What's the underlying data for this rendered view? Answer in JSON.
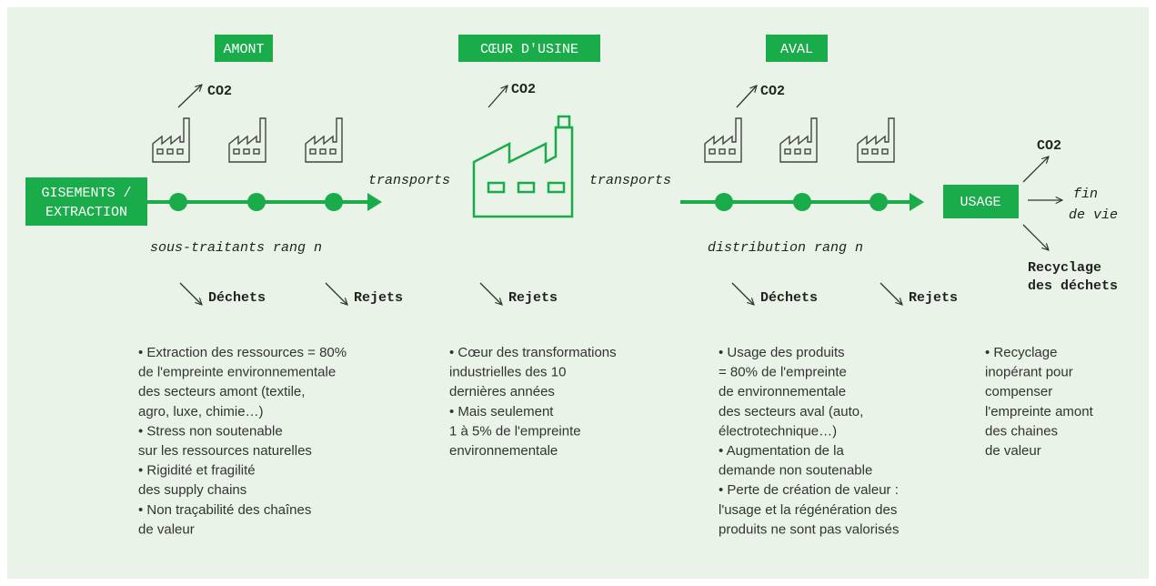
{
  "stages": [
    "AMONT",
    "CŒUR D'USINE",
    "AVAL"
  ],
  "co2": [
    "CO2",
    "CO2",
    "CO2",
    "CO2"
  ],
  "source": [
    "GISEMENTS /",
    "EXTRACTION"
  ],
  "transports": [
    "transports",
    "transports"
  ],
  "tiers": [
    "sous-traitants rang n",
    "distribution rang n"
  ],
  "outputs": [
    "Déchets",
    "Rejets",
    "Rejets",
    "Déchets",
    "Rejets"
  ],
  "usage": "USAGE",
  "end_of_life": [
    "fin",
    "de vie"
  ],
  "recycling": [
    "Recyclage",
    "des déchets"
  ],
  "notes": [
    [
      "• Extraction des ressources = 80%",
      "de l'empreinte environnementale",
      "des secteurs amont (textile,",
      "agro, luxe, chimie…)",
      "• Stress non soutenable",
      "sur les ressources naturelles",
      "• Rigidité et fragilité",
      "des supply chains",
      "• Non traçabilité des chaînes",
      "de valeur"
    ],
    [
      "• Cœur des transformations",
      "industrielles des 10",
      "dernières années",
      "• Mais seulement",
      "1 à 5% de l'empreinte",
      "environnementale"
    ],
    [
      "• Usage des produits",
      "= 80% de l'empreinte",
      "de environnementale",
      "des secteurs aval (auto,",
      "électrotechnique…)",
      "• Augmentation de la",
      "demande non soutenable",
      "• Perte de création de valeur :",
      "l'usage et la régénération des",
      "produits ne sont pas valorisés"
    ],
    [
      "• Recyclage",
      "inopérant pour",
      "compenser",
      "l'empreinte amont",
      "des chaines",
      "de valeur"
    ]
  ]
}
